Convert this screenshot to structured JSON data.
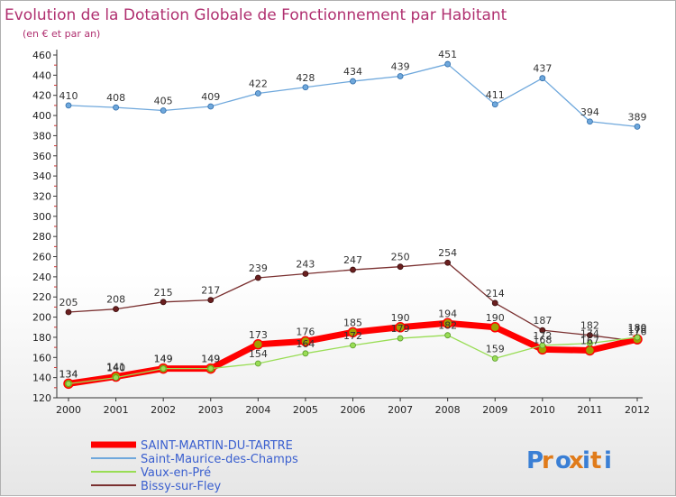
{
  "chart_data": {
    "type": "line",
    "title": "Evolution de la Dotation Globale de Fonctionnement par Habitant",
    "subtitle": "(en € et par an)",
    "x": [
      "2000",
      "2001",
      "2002",
      "2003",
      "2004",
      "2005",
      "2006",
      "2007",
      "2008",
      "2009",
      "2010",
      "2011",
      "2012"
    ],
    "ylim": [
      120,
      460
    ],
    "yticks": [
      120,
      140,
      160,
      180,
      200,
      220,
      240,
      260,
      280,
      300,
      320,
      340,
      360,
      380,
      400,
      420,
      440,
      460
    ],
    "grid": false,
    "legend_position": "bottom",
    "series": [
      {
        "name": "Saint-Maurice-des-Champs",
        "color": "#6fa8dc",
        "values": [
          410,
          408,
          405,
          409,
          422,
          428,
          434,
          439,
          451,
          411,
          437,
          394,
          389
        ],
        "labels": [
          "410",
          "408",
          "405",
          "409",
          "422",
          "428",
          "434",
          "439",
          "451",
          "411",
          "437",
          "394",
          "389"
        ]
      },
      {
        "name": "Bissy-sur-Fley",
        "color": "#7a3030",
        "values": [
          205,
          208,
          215,
          217,
          239,
          243,
          247,
          250,
          254,
          214,
          187,
          182,
          176
        ],
        "labels": [
          "205",
          "208",
          "215",
          "217",
          "239",
          "243",
          "247",
          "250",
          "254",
          "214",
          "187",
          "182",
          "176"
        ]
      },
      {
        "name": "Vaux-en-Pré",
        "color": "#99dd55",
        "values": [
          134,
          140,
          149,
          149,
          154,
          164,
          172,
          179,
          182,
          159,
          172,
          174,
          180
        ],
        "labels": [
          "134",
          "140",
          "149",
          "149",
          "154",
          "164",
          "172",
          "179",
          "182",
          "159",
          "172",
          "174",
          "180"
        ]
      },
      {
        "name": "SAINT-MARTIN-DU-TARTRE",
        "color": "#ff0000",
        "values": [
          134,
          141,
          149,
          149,
          173,
          176,
          185,
          190,
          194,
          190,
          168,
          167,
          178
        ],
        "labels": [
          "134",
          "141",
          "149",
          "149",
          "173",
          "176",
          "185",
          "190",
          "194",
          "190",
          "168",
          "167",
          "178"
        ]
      }
    ],
    "legend_order": [
      "SAINT-MARTIN-DU-TARTRE",
      "Saint-Maurice-des-Champs",
      "Vaux-en-Pré",
      "Bissy-sur-Fley"
    ]
  },
  "brand": {
    "logo_text": "Proxiti",
    "letter_colors": [
      "#3a7fd5",
      "#e07b1a",
      "#3a7fd5",
      "#e07b1a",
      "#3a7fd5",
      "#e07b1a",
      "#3a7fd5"
    ]
  }
}
